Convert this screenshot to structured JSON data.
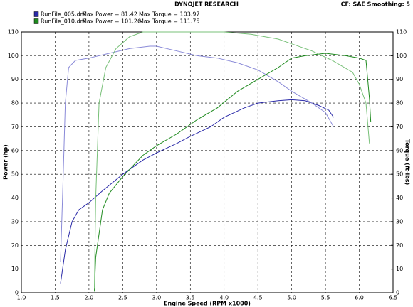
{
  "chart_data": {
    "type": "line",
    "title": "DYNOJET RESEARCH",
    "subtitle": "CF: SAE   Smoothing: 5",
    "xlabel": "Engine Speed (RPM x1000)",
    "ylabel": "Power (hp)",
    "y2label": "Torque (ft-lbs)",
    "legend": [
      {
        "file": "RunFile_005.drf",
        "power": "Max Power = 81.42",
        "torque": "Max Torque = 103.97",
        "color": "#2a2aa8"
      },
      {
        "file": "RunFile_010.drf",
        "power": "Max Power = 101.26",
        "torque": "Max Torque = 111.75",
        "color": "#1e8a1e"
      }
    ],
    "xlim": [
      1,
      6.5
    ],
    "xticks": [
      {
        "value": 1,
        "label": "1.0"
      },
      1.5,
      {
        "value": 2,
        "label": "2.0"
      },
      2.5,
      {
        "value": 3,
        "label": "3.0"
      },
      3.5,
      {
        "value": 4,
        "label": "4.0"
      },
      4.5,
      {
        "value": 5,
        "label": "5.0"
      },
      5.5,
      {
        "value": 6,
        "label": "6.0"
      },
      6.5
    ],
    "ylim": [
      0,
      110
    ],
    "yticks": [
      0,
      10,
      20,
      30,
      40,
      50,
      60,
      70,
      80,
      90,
      100,
      110
    ],
    "y2lim": [
      0,
      110
    ],
    "y2ticks": [
      0,
      10,
      20,
      30,
      40,
      50,
      60,
      70,
      80,
      90,
      100,
      110
    ],
    "grid": true,
    "series": [
      {
        "color": "#2a2aa8",
        "axis": "y",
        "x": [
          1.58,
          1.65,
          1.75,
          1.85,
          2.0,
          2.2,
          2.5,
          2.8,
          3.0,
          3.3,
          3.5,
          3.8,
          4.0,
          4.3,
          4.5,
          4.8,
          5.0,
          5.2,
          5.4,
          5.55,
          5.62
        ],
        "values": [
          4,
          18,
          30,
          35,
          38,
          43,
          50,
          56,
          59,
          63,
          66,
          70,
          74,
          78,
          80,
          81,
          81.4,
          81,
          79,
          77,
          74
        ]
      },
      {
        "color": "#8a8ad8",
        "axis": "y2",
        "x": [
          1.58,
          1.62,
          1.65,
          1.7,
          1.8,
          2.0,
          2.3,
          2.6,
          2.9,
          3.0,
          3.3,
          3.6,
          3.9,
          4.2,
          4.5,
          4.8,
          5.0,
          5.3,
          5.5,
          5.62
        ],
        "values": [
          13,
          50,
          80,
          95,
          98,
          99,
          101,
          103,
          104,
          104,
          102,
          100,
          99,
          97,
          94,
          89,
          85,
          80,
          76,
          70
        ]
      },
      {
        "color": "#1e8a1e",
        "axis": "y",
        "x": [
          2.08,
          2.1,
          2.2,
          2.3,
          2.5,
          2.8,
          3.0,
          3.3,
          3.6,
          3.9,
          4.2,
          4.5,
          4.8,
          5.0,
          5.2,
          5.5,
          5.8,
          6.0,
          6.1,
          6.15,
          6.17
        ],
        "values": [
          0.5,
          15,
          35,
          42,
          49,
          58,
          62,
          67,
          73,
          78,
          85,
          90,
          95,
          99,
          100,
          101,
          100,
          99,
          98,
          82,
          72
        ]
      },
      {
        "color": "#78c078",
        "axis": "y2",
        "x": [
          2.08,
          2.1,
          2.15,
          2.25,
          2.4,
          2.6,
          2.8,
          3.0,
          3.5,
          4.0,
          4.4,
          4.8,
          5.0,
          5.3,
          5.6,
          5.9,
          6.0,
          6.1,
          6.15
        ],
        "values": [
          2,
          40,
          80,
          95,
          103,
          108,
          110,
          110,
          110,
          110,
          109,
          107,
          105,
          102,
          98,
          93,
          88,
          80,
          63
        ]
      }
    ]
  }
}
